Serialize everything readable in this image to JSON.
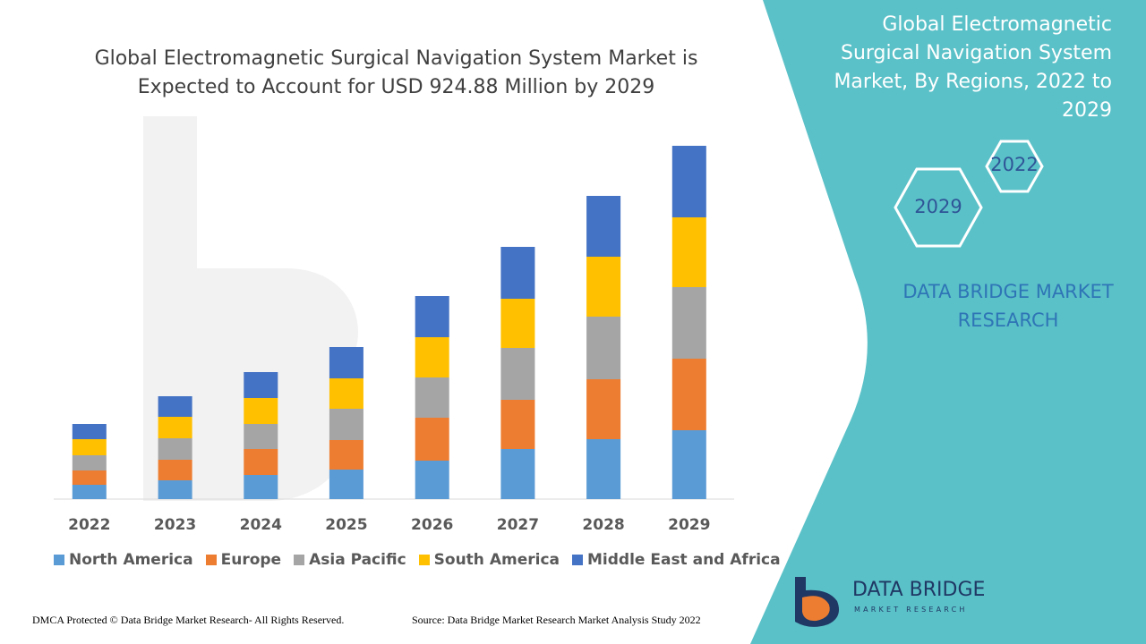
{
  "chart_data": {
    "type": "bar",
    "stacked": true,
    "title": "Global Electromagnetic Surgical Navigation System Market is Expected to Account for USD 924.88 Million by 2029",
    "categories": [
      "2022",
      "2023",
      "2024",
      "2025",
      "2026",
      "2027",
      "2028",
      "2029"
    ],
    "series": [
      {
        "name": "North America",
        "color": "#5b9bd5",
        "values": [
          16,
          21,
          27,
          33,
          43,
          56,
          67,
          77
        ]
      },
      {
        "name": "Europe",
        "color": "#ed7d31",
        "values": [
          16,
          23,
          29,
          33,
          48,
          55,
          67,
          80
        ]
      },
      {
        "name": "Asia Pacific",
        "color": "#a5a5a5",
        "values": [
          17,
          24,
          28,
          35,
          45,
          58,
          70,
          80
        ]
      },
      {
        "name": "South America",
        "color": "#ffc000",
        "values": [
          18,
          24,
          29,
          34,
          45,
          55,
          67,
          78
        ]
      },
      {
        "name": "Middle East and Africa",
        "color": "#4472c4",
        "values": [
          17,
          23,
          29,
          35,
          46,
          58,
          68,
          80
        ]
      }
    ],
    "ylim": [
      0,
      400
    ],
    "xlabel": "",
    "ylabel": "",
    "grid": false,
    "legend": "bottom"
  },
  "side_panel": {
    "title": "Global Electromagnetic Surgical Navigation System Market, By Regions, 2022 to 2029",
    "hex_2022": "2022",
    "hex_2029": "2029",
    "brand": "DATA BRIDGE MARKET RESEARCH",
    "color": "#5bc1c8"
  },
  "logo": {
    "name": "DATA BRIDGE",
    "tagline": "MARKET RESEARCH"
  },
  "footer": {
    "copyright": "DMCA Protected © Data Bridge Market Research- All Rights Reserved.",
    "source": "Source: Data Bridge Market Research Market Analysis Study 2022"
  }
}
